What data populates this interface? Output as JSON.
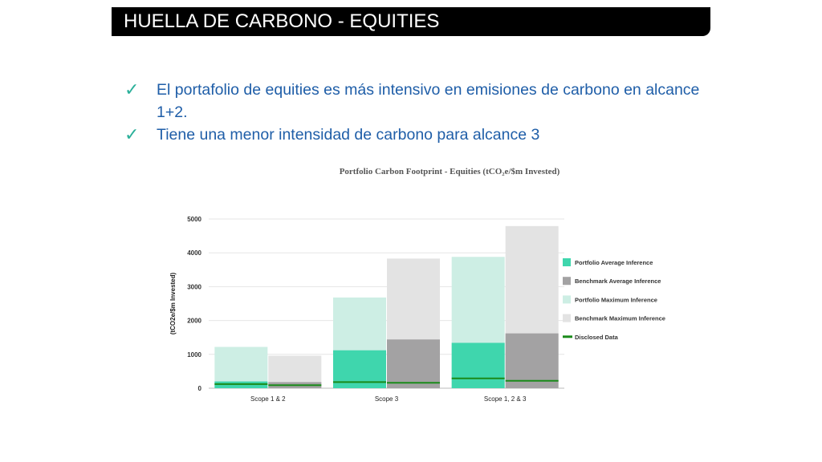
{
  "header": {
    "title": "HUELLA DE CARBONO - EQUITIES"
  },
  "bullets": [
    {
      "icon": "checkmark-icon",
      "glyph": "✓",
      "text": "El portafolio de equities es más intensivo en emisiones de carbono en alcance 1+2."
    },
    {
      "icon": "checkmark-icon",
      "glyph": "✓",
      "text": "Tiene una menor intensidad de carbono para alcance 3"
    }
  ],
  "colors": {
    "title_bar": "#000000",
    "bullet_text": "#1f5ea8",
    "check": "#2bb09a",
    "portfolio_avg": "#3fd6ad",
    "benchmark_avg": "#a3a2a3",
    "portfolio_max": "#cdeee4",
    "benchmark_max": "#e3e3e3",
    "disclosed": "#1a8a1a"
  },
  "chart_data": {
    "type": "bar",
    "title": "Portfolio Carbon Footprint - Equities (tCO₂e/$m Invested)",
    "ylabel": "(tCO2e/$m Invested)",
    "xlabel": "",
    "ylim": [
      0,
      5000
    ],
    "yticks": [
      "0",
      "1000",
      "2000",
      "3000",
      "4000",
      "5000"
    ],
    "grid": true,
    "legend_position": "right",
    "categories": [
      "Scope 1 & 2",
      "Scope 3",
      "Scope 1, 2 & 3"
    ],
    "series": [
      {
        "name": "Portfolio Average Inference",
        "group": "portfolio",
        "values": [
          200,
          1120,
          1340
        ]
      },
      {
        "name": "Benchmark Average Inference",
        "group": "benchmark",
        "values": [
          180,
          1440,
          1620
        ]
      },
      {
        "name": "Portfolio Maximum Inference",
        "group": "portfolio",
        "values": [
          1220,
          2680,
          3880
        ]
      },
      {
        "name": "Benchmark Maximum Inference",
        "group": "benchmark",
        "values": [
          960,
          3830,
          4790
        ]
      },
      {
        "name": "Disclosed Data",
        "type": "line-marker",
        "portfolio": [
          120,
          180,
          290
        ],
        "benchmark": [
          90,
          160,
          220
        ]
      }
    ]
  }
}
